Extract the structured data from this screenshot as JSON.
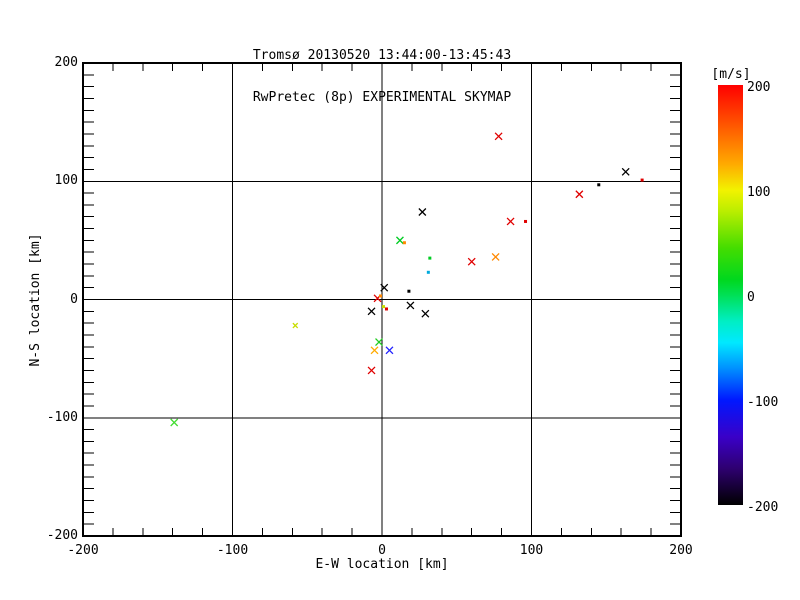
{
  "window": {
    "background": "#ffffff"
  },
  "chart_data": {
    "type": "scatter",
    "title": "Tromsø 20130520 13:44:00-13:45:43",
    "subtitle": "RwPretec (8p) EXPERIMENTAL SKYMAP",
    "xlabel": "E-W location [km]",
    "ylabel": "N-S location [km]",
    "xlim": [
      -200,
      200
    ],
    "ylim": [
      -200,
      200
    ],
    "xticks": [
      -200,
      -100,
      0,
      100,
      200
    ],
    "yticks": [
      -200,
      -100,
      0,
      100,
      200
    ],
    "x_minor_step": 20,
    "y_minor_step": 10,
    "grid": true,
    "marker_symbol": "x-cross",
    "colorbar": {
      "label": "[m/s]",
      "lim": [
        -200,
        200
      ],
      "ticks": [
        200,
        100,
        0,
        -100,
        -200
      ],
      "gradient_stops": [
        {
          "value": 200,
          "color": "#ff0000"
        },
        {
          "value": 155,
          "color": "#ff6600"
        },
        {
          "value": 125,
          "color": "#ffaa00"
        },
        {
          "value": 100,
          "color": "#f2f200"
        },
        {
          "value": 80,
          "color": "#bbee00"
        },
        {
          "value": 45,
          "color": "#44dd00"
        },
        {
          "value": 15,
          "color": "#00d81e"
        },
        {
          "value": 0,
          "color": "#00e055"
        },
        {
          "value": -25,
          "color": "#00eec4"
        },
        {
          "value": -45,
          "color": "#00e9ff"
        },
        {
          "value": -70,
          "color": "#0090ff"
        },
        {
          "value": -100,
          "color": "#0018ff"
        },
        {
          "value": -135,
          "color": "#3a00c8"
        },
        {
          "value": -165,
          "color": "#2e0070"
        },
        {
          "value": -200,
          "color": "#000000"
        }
      ]
    },
    "points": [
      {
        "x": 78,
        "y": 138,
        "color": "#e00000",
        "marker": "x"
      },
      {
        "x": 163,
        "y": 108,
        "color": "#000000",
        "marker": "x"
      },
      {
        "x": 174,
        "y": 101,
        "color": "#e00000",
        "marker": "dot"
      },
      {
        "x": 145,
        "y": 97,
        "color": "#000000",
        "marker": "dot"
      },
      {
        "x": 132,
        "y": 89,
        "color": "#e00000",
        "marker": "x"
      },
      {
        "x": 86,
        "y": 66,
        "color": "#e00000",
        "marker": "x"
      },
      {
        "x": 96,
        "y": 66,
        "color": "#e00000",
        "marker": "dot"
      },
      {
        "x": 27,
        "y": 74,
        "color": "#000000",
        "marker": "x"
      },
      {
        "x": 12,
        "y": 50,
        "color": "#00cc22",
        "marker": "x"
      },
      {
        "x": 15,
        "y": 48,
        "color": "#ff8800",
        "marker": "dot"
      },
      {
        "x": 32,
        "y": 35,
        "color": "#00cc22",
        "marker": "dot"
      },
      {
        "x": 60,
        "y": 32,
        "color": "#e00000",
        "marker": "x"
      },
      {
        "x": 76,
        "y": 36,
        "color": "#ff8800",
        "marker": "x"
      },
      {
        "x": 31,
        "y": 23,
        "color": "#00aadd",
        "marker": "dot"
      },
      {
        "x": 1.5,
        "y": 10,
        "color": "#000000",
        "marker": "x"
      },
      {
        "x": 18,
        "y": 7,
        "color": "#000000",
        "marker": "dot"
      },
      {
        "x": -3,
        "y": 1,
        "color": "#e00000",
        "marker": "x"
      },
      {
        "x": -1,
        "y": 3,
        "color": "#ff8800",
        "marker": "dot"
      },
      {
        "x": 1,
        "y": -6,
        "color": "#c8dd00",
        "marker": "dot"
      },
      {
        "x": 3,
        "y": -8,
        "color": "#e00000",
        "marker": "dot"
      },
      {
        "x": -7,
        "y": -10,
        "color": "#000000",
        "marker": "x"
      },
      {
        "x": 19,
        "y": -5,
        "color": "#000000",
        "marker": "x"
      },
      {
        "x": 29,
        "y": -12,
        "color": "#000000",
        "marker": "x"
      },
      {
        "x": -58,
        "y": -22,
        "color": "#c8dd00",
        "marker": "x-small"
      },
      {
        "x": -2,
        "y": -36,
        "color": "#22cc22",
        "marker": "x"
      },
      {
        "x": -5,
        "y": -43,
        "color": "#ffaa00",
        "marker": "x"
      },
      {
        "x": 5,
        "y": -43,
        "color": "#2222ff",
        "marker": "x"
      },
      {
        "x": -7,
        "y": -60,
        "color": "#e00000",
        "marker": "x"
      },
      {
        "x": -139,
        "y": -104,
        "color": "#44dd33",
        "marker": "x"
      }
    ]
  }
}
